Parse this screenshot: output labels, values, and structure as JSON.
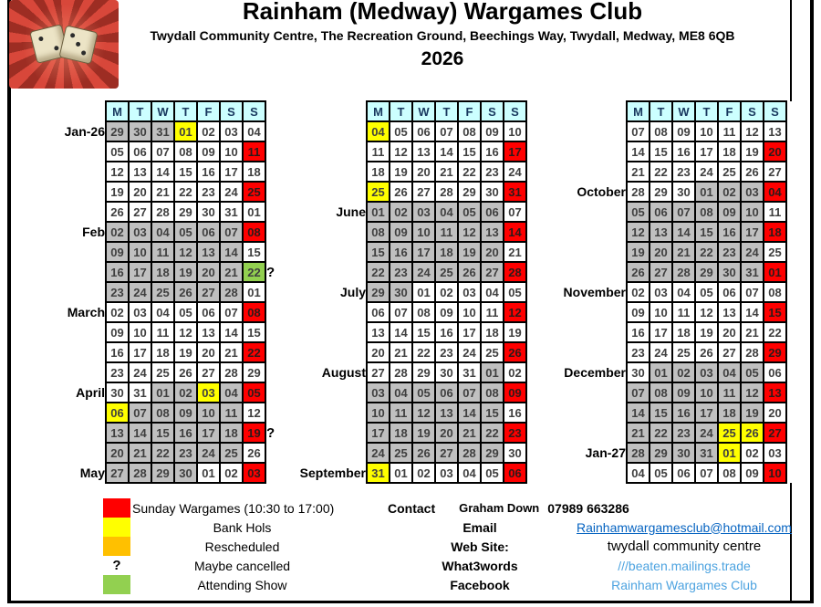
{
  "header": {
    "title": "Rainham (Medway) Wargames Club",
    "address": "Twydall Community Centre, The Recreation Ground, Beechings Way, Twydall, Medway, ME8 6QB",
    "year": "2026"
  },
  "colors": {
    "red": "#FF0000",
    "yellow": "#FFFF00",
    "orange": "#FFC000",
    "green": "#92D050",
    "gray": "#C0C0C0",
    "white": "#FFFFFF",
    "header_fill": "#CCFFFF",
    "email_link": "#0563C1",
    "light_blue_link": "#4DA3E0"
  },
  "day_headers": [
    "M",
    "T",
    "W",
    "T",
    "F",
    "S",
    "S"
  ],
  "calendars": [
    {
      "name": "january-to-may",
      "rows": [
        {
          "label": "Jan-26",
          "suffix": "",
          "cells": [
            "29g",
            "30g",
            "31g",
            "01y",
            "02w",
            "03w",
            "04w"
          ]
        },
        {
          "label": "",
          "suffix": "",
          "cells": [
            "05w",
            "06w",
            "07w",
            "08w",
            "09w",
            "10w",
            "11r"
          ]
        },
        {
          "label": "",
          "suffix": "",
          "cells": [
            "12w",
            "13w",
            "14w",
            "15w",
            "16w",
            "17w",
            "18w"
          ]
        },
        {
          "label": "",
          "suffix": "",
          "cells": [
            "19w",
            "20w",
            "21w",
            "22w",
            "23w",
            "24w",
            "25r"
          ]
        },
        {
          "label": "",
          "suffix": "",
          "cells": [
            "26w",
            "27w",
            "28w",
            "29w",
            "30w",
            "31w",
            "01w"
          ]
        },
        {
          "label": "Feb",
          "suffix": "",
          "cells": [
            "02g",
            "03g",
            "04g",
            "05g",
            "06g",
            "07g",
            "08r"
          ]
        },
        {
          "label": "",
          "suffix": "",
          "cells": [
            "09g",
            "10g",
            "11g",
            "12g",
            "13g",
            "14g",
            "15w"
          ]
        },
        {
          "label": "",
          "suffix": "?",
          "cells": [
            "16g",
            "17g",
            "18g",
            "19g",
            "20g",
            "21g",
            "22n"
          ]
        },
        {
          "label": "",
          "suffix": "",
          "cells": [
            "23g",
            "24g",
            "25g",
            "26g",
            "27g",
            "28g",
            "01w"
          ]
        },
        {
          "label": "March",
          "suffix": "",
          "cells": [
            "02w",
            "03w",
            "04w",
            "05w",
            "06w",
            "07w",
            "08r"
          ]
        },
        {
          "label": "",
          "suffix": "",
          "cells": [
            "09w",
            "10w",
            "11w",
            "12w",
            "13w",
            "14w",
            "15w"
          ]
        },
        {
          "label": "",
          "suffix": "",
          "cells": [
            "16w",
            "17w",
            "18w",
            "19w",
            "20w",
            "21w",
            "22r"
          ]
        },
        {
          "label": "",
          "suffix": "",
          "cells": [
            "23w",
            "24w",
            "25w",
            "26w",
            "27w",
            "28w",
            "29w"
          ]
        },
        {
          "label": "April",
          "suffix": "",
          "cells": [
            "30w",
            "31w",
            "01g",
            "02g",
            "03y",
            "04g",
            "05r"
          ]
        },
        {
          "label": "",
          "suffix": "",
          "cells": [
            "06y",
            "07g",
            "08g",
            "09g",
            "10g",
            "11g",
            "12w"
          ]
        },
        {
          "label": "",
          "suffix": "?",
          "cells": [
            "13g",
            "14g",
            "15g",
            "16g",
            "17g",
            "18g",
            "19r"
          ]
        },
        {
          "label": "",
          "suffix": "",
          "cells": [
            "20g",
            "21g",
            "22g",
            "23g",
            "24g",
            "25g",
            "26w"
          ]
        },
        {
          "label": "May",
          "suffix": "",
          "cells": [
            "27g",
            "28g",
            "29g",
            "30g",
            "01w",
            "02w",
            "03r"
          ]
        }
      ]
    },
    {
      "name": "may-to-september",
      "rows": [
        {
          "label": "",
          "suffix": "",
          "cells": [
            "04y",
            "05w",
            "06w",
            "07w",
            "08w",
            "09w",
            "10w"
          ]
        },
        {
          "label": "",
          "suffix": "",
          "cells": [
            "11w",
            "12w",
            "13w",
            "14w",
            "15w",
            "16w",
            "17r"
          ]
        },
        {
          "label": "",
          "suffix": "",
          "cells": [
            "18w",
            "19w",
            "20w",
            "21w",
            "22w",
            "23w",
            "24w"
          ]
        },
        {
          "label": "",
          "suffix": "",
          "cells": [
            "25y",
            "26w",
            "27w",
            "28w",
            "29w",
            "30w",
            "31r"
          ]
        },
        {
          "label": "June",
          "suffix": "",
          "cells": [
            "01g",
            "02g",
            "03g",
            "04g",
            "05g",
            "06g",
            "07w"
          ]
        },
        {
          "label": "",
          "suffix": "",
          "cells": [
            "08g",
            "09g",
            "10g",
            "11g",
            "12g",
            "13g",
            "14r"
          ]
        },
        {
          "label": "",
          "suffix": "",
          "cells": [
            "15g",
            "16g",
            "17g",
            "18g",
            "19g",
            "20g",
            "21w"
          ]
        },
        {
          "label": "",
          "suffix": "",
          "cells": [
            "22g",
            "23g",
            "24g",
            "25g",
            "26g",
            "27g",
            "28r"
          ]
        },
        {
          "label": "July",
          "suffix": "",
          "cells": [
            "29g",
            "30g",
            "01w",
            "02w",
            "03w",
            "04w",
            "05w"
          ]
        },
        {
          "label": "",
          "suffix": "",
          "cells": [
            "06w",
            "07w",
            "08w",
            "09w",
            "10w",
            "11w",
            "12r"
          ]
        },
        {
          "label": "",
          "suffix": "",
          "cells": [
            "13w",
            "14w",
            "15w",
            "16w",
            "17w",
            "18w",
            "19w"
          ]
        },
        {
          "label": "",
          "suffix": "",
          "cells": [
            "20w",
            "21w",
            "22w",
            "23w",
            "24w",
            "25w",
            "26r"
          ]
        },
        {
          "label": "August",
          "suffix": "",
          "cells": [
            "27w",
            "28w",
            "29w",
            "30w",
            "31w",
            "01g",
            "02w"
          ]
        },
        {
          "label": "",
          "suffix": "",
          "cells": [
            "03g",
            "04g",
            "05g",
            "06g",
            "07g",
            "08g",
            "09r"
          ]
        },
        {
          "label": "",
          "suffix": "",
          "cells": [
            "10g",
            "11g",
            "12g",
            "13g",
            "14g",
            "15g",
            "16w"
          ]
        },
        {
          "label": "",
          "suffix": "",
          "cells": [
            "17g",
            "18g",
            "19g",
            "20g",
            "21g",
            "22g",
            "23r"
          ]
        },
        {
          "label": "",
          "suffix": "",
          "cells": [
            "24g",
            "25g",
            "26g",
            "27g",
            "28g",
            "29g",
            "30w"
          ]
        },
        {
          "label": "September",
          "suffix": "",
          "cells": [
            "31y",
            "01w",
            "02w",
            "03w",
            "04w",
            "05w",
            "06r"
          ]
        }
      ]
    },
    {
      "name": "september-to-january",
      "rows": [
        {
          "label": "",
          "suffix": "",
          "cells": [
            "07w",
            "08w",
            "09w",
            "10w",
            "11w",
            "12w",
            "13w"
          ]
        },
        {
          "label": "",
          "suffix": "",
          "cells": [
            "14w",
            "15w",
            "16w",
            "17w",
            "18w",
            "19w",
            "20r"
          ]
        },
        {
          "label": "",
          "suffix": "",
          "cells": [
            "21w",
            "22w",
            "23w",
            "24w",
            "25w",
            "26w",
            "27w"
          ]
        },
        {
          "label": "October",
          "suffix": "",
          "cells": [
            "28w",
            "29w",
            "30w",
            "01g",
            "02g",
            "03g",
            "04r"
          ]
        },
        {
          "label": "",
          "suffix": "",
          "cells": [
            "05g",
            "06g",
            "07g",
            "08g",
            "09g",
            "10g",
            "11w"
          ]
        },
        {
          "label": "",
          "suffix": "",
          "cells": [
            "12g",
            "13g",
            "14g",
            "15g",
            "16g",
            "17g",
            "18r"
          ]
        },
        {
          "label": "",
          "suffix": "",
          "cells": [
            "19g",
            "20g",
            "21g",
            "22g",
            "23g",
            "24g",
            "25w"
          ]
        },
        {
          "label": "",
          "suffix": "",
          "cells": [
            "26g",
            "27g",
            "28g",
            "29g",
            "30g",
            "31g",
            "01r"
          ]
        },
        {
          "label": "November",
          "suffix": "",
          "cells": [
            "02w",
            "03w",
            "04w",
            "05w",
            "06w",
            "07w",
            "08w"
          ]
        },
        {
          "label": "",
          "suffix": "",
          "cells": [
            "09w",
            "10w",
            "11w",
            "12w",
            "13w",
            "14w",
            "15r"
          ]
        },
        {
          "label": "",
          "suffix": "",
          "cells": [
            "16w",
            "17w",
            "18w",
            "19w",
            "20w",
            "21w",
            "22w"
          ]
        },
        {
          "label": "",
          "suffix": "",
          "cells": [
            "23w",
            "24w",
            "25w",
            "26w",
            "27w",
            "28w",
            "29r"
          ]
        },
        {
          "label": "December",
          "suffix": "",
          "cells": [
            "30w",
            "01g",
            "02g",
            "03g",
            "04g",
            "05g",
            "06w"
          ]
        },
        {
          "label": "",
          "suffix": "",
          "cells": [
            "07g",
            "08g",
            "09g",
            "10g",
            "11g",
            "12g",
            "13r"
          ]
        },
        {
          "label": "",
          "suffix": "",
          "cells": [
            "14g",
            "15g",
            "16g",
            "17g",
            "18g",
            "19g",
            "20w"
          ]
        },
        {
          "label": "",
          "suffix": "",
          "cells": [
            "21g",
            "22g",
            "23g",
            "24g",
            "25y",
            "26y",
            "27r"
          ]
        },
        {
          "label": "Jan-27",
          "suffix": "",
          "cells": [
            "28g",
            "29g",
            "30g",
            "31g",
            "01y",
            "02w",
            "03w"
          ]
        },
        {
          "label": "",
          "suffix": "",
          "cells": [
            "04w",
            "05w",
            "06w",
            "07w",
            "08w",
            "09w",
            "10r"
          ]
        }
      ]
    }
  ],
  "legend": {
    "items": [
      {
        "swatch": "red",
        "label": "Sunday Wargames (10:30 to 17:00)"
      },
      {
        "swatch": "yellow",
        "label": "Bank Hols"
      },
      {
        "swatch": "orange",
        "label": "Rescheduled"
      },
      {
        "swatch": "question",
        "label": "Maybe cancelled"
      },
      {
        "swatch": "green",
        "label": "Attending Show"
      }
    ],
    "question_mark": "?"
  },
  "contact": {
    "label": "Contact",
    "name": "Graham Down",
    "phone": "07989 663286",
    "rows": [
      {
        "label": "Email",
        "value": "Rainhamwargamesclub@hotmail.com",
        "style": "link",
        "interactable": true
      },
      {
        "label": "Web Site:",
        "value": "twydall community centre",
        "style": "plain",
        "interactable": false
      },
      {
        "label": "What3words",
        "value": "///beaten.mailings.trade",
        "style": "lblue",
        "interactable": true
      },
      {
        "label": "Facebook",
        "value": "Rainham Wargames Club",
        "style": "lblue",
        "interactable": true
      }
    ]
  }
}
